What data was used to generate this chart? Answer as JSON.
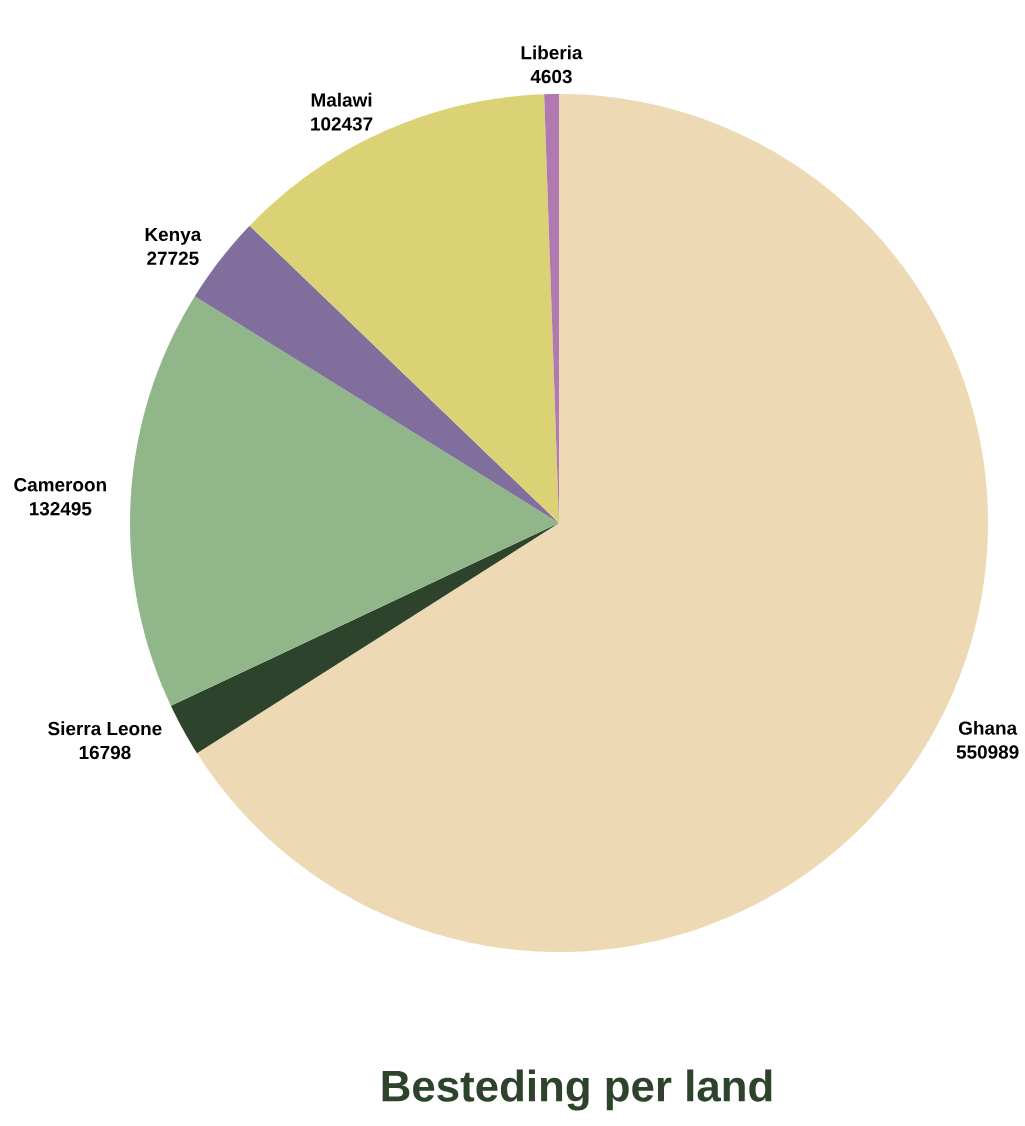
{
  "chart_data": {
    "type": "pie",
    "title": "Besteding per land",
    "categories": [
      "Ghana",
      "Sierra Leone",
      "Cameroon",
      "Kenya",
      "Malawi",
      "Liberia"
    ],
    "values": [
      550989,
      16798,
      132495,
      27725,
      102437,
      4603
    ],
    "colors": [
      "#edd9b3",
      "#2d432b",
      "#90b68a",
      "#806f9c",
      "#dbd275",
      "#b07ab0"
    ],
    "data_labels": true
  }
}
